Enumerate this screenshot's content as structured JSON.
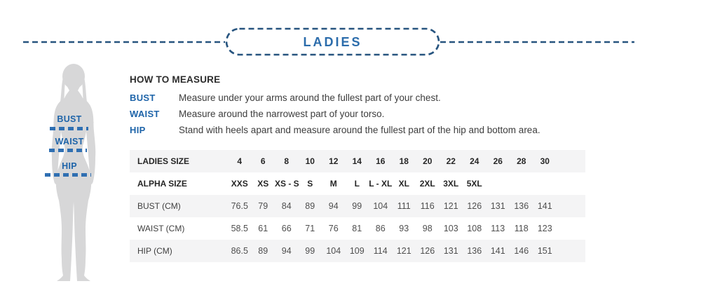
{
  "header": {
    "title": "LADIES"
  },
  "figure": {
    "labels": {
      "bust": "BUST",
      "waist": "WAIST",
      "hip": "HIP"
    }
  },
  "how_to_measure": {
    "title": "HOW TO MEASURE",
    "items": [
      {
        "label": "BUST",
        "description": "Measure under your arms around the fullest part of your chest."
      },
      {
        "label": "WAIST",
        "description": "Measure around the narrowest part of your torso."
      },
      {
        "label": "HIP",
        "description": "Stand with heels apart and measure around the fullest part of the hip and bottom area."
      }
    ]
  },
  "chart_data": {
    "type": "table",
    "title": "LADIES",
    "rows": [
      {
        "label": "LADIES SIZE",
        "bold": true,
        "values": [
          "4",
          "6",
          "8",
          "10",
          "12",
          "14",
          "16",
          "18",
          "20",
          "22",
          "24",
          "26",
          "28",
          "30"
        ]
      },
      {
        "label": "ALPHA SIZE",
        "bold": true,
        "values": [
          "XXS",
          "XS",
          "XS - S",
          "S",
          "M",
          "L",
          "L - XL",
          "XL",
          "2XL",
          "3XL",
          "5XL",
          "",
          "",
          ""
        ]
      },
      {
        "label": "BUST (CM)",
        "bold": false,
        "values": [
          "76.5",
          "79",
          "84",
          "89",
          "94",
          "99",
          "104",
          "111",
          "116",
          "121",
          "126",
          "131",
          "136",
          "141"
        ]
      },
      {
        "label": "WAIST (CM)",
        "bold": false,
        "values": [
          "58.5",
          "61",
          "66",
          "71",
          "76",
          "81",
          "86",
          "93",
          "98",
          "103",
          "108",
          "113",
          "118",
          "123"
        ]
      },
      {
        "label": "HIP (CM)",
        "bold": false,
        "values": [
          "86.5",
          "89",
          "94",
          "99",
          "104",
          "109",
          "114",
          "121",
          "126",
          "131",
          "136",
          "141",
          "146",
          "151"
        ]
      }
    ]
  },
  "colors": {
    "navy_dash": "#27547f",
    "accent_blue": "#2b6cab",
    "label_blue": "#1e64a9",
    "stripe_gray": "#f4f4f5",
    "silhouette_gray": "#d7d7d8"
  }
}
